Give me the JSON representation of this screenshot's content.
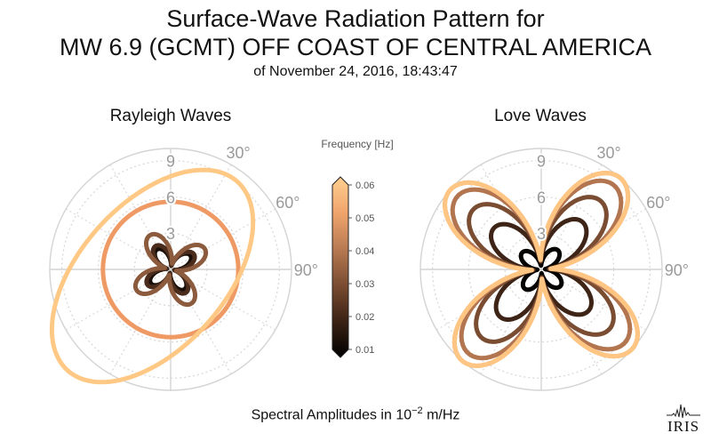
{
  "title": {
    "line1": "Surface-Wave Radiation Pattern for",
    "line2": "MW 6.9 (GCMT) OFF COAST OF CENTRAL AMERICA",
    "line3": "of November 24, 2016, 18:43:47"
  },
  "footer": {
    "prefix": "Spectral Amplitudes in 10",
    "exponent": "−2",
    "suffix": " m/Hz"
  },
  "logo": {
    "text": "IRIS"
  },
  "chart_data": [
    {
      "type": "polar-line",
      "name": "rayleigh",
      "title": "Rayleigh Waves",
      "rlim": [
        0,
        10
      ],
      "radial_ticks": [
        {
          "value": 3,
          "label": "3"
        },
        {
          "value": 6,
          "label": "6"
        },
        {
          "value": 9,
          "label": "9"
        }
      ],
      "angle_ticks": [
        {
          "deg": 30,
          "label": "30°"
        },
        {
          "deg": 60,
          "label": "60°"
        },
        {
          "deg": 90,
          "label": "90°"
        }
      ],
      "series": [
        {
          "frequency": 0.01,
          "color": "#1a0e08",
          "pattern": "four-lobe",
          "amplitude": 2.0,
          "orientation_deg": 10,
          "node_fraction": 0.15
        },
        {
          "frequency": 0.02,
          "color": "#4a2c1c",
          "pattern": "four-lobe",
          "amplitude": 2.3,
          "orientation_deg": 12,
          "node_fraction": 0.15
        },
        {
          "frequency": 0.03,
          "color": "#8c5a3c",
          "pattern": "four-lobe",
          "amplitude": 3.3,
          "orientation_deg": 14,
          "node_fraction": 0.15
        },
        {
          "frequency": 0.045,
          "color": "#ef9a64",
          "pattern": "circle",
          "amplitude": 5.6
        },
        {
          "frequency": 0.06,
          "color": "#ffc985",
          "pattern": "oval",
          "a": 10.5,
          "b": 6.0,
          "orientation_deg": 42,
          "offset_r": 1.6,
          "offset_deg": -110
        }
      ]
    },
    {
      "type": "polar-line",
      "name": "love",
      "title": "Love Waves",
      "rlim": [
        0,
        10
      ],
      "radial_ticks": [
        {
          "value": 3,
          "label": "3"
        },
        {
          "value": 6,
          "label": "6"
        },
        {
          "value": 9,
          "label": "9"
        }
      ],
      "angle_ticks": [
        {
          "deg": 30,
          "label": "30°"
        },
        {
          "deg": 60,
          "label": "60°"
        },
        {
          "deg": 90,
          "label": "90°"
        }
      ],
      "series": [
        {
          "frequency": 0.01,
          "color": "#050302",
          "pattern": "four-lobe",
          "amplitude": 2.1,
          "orientation_deg": -4,
          "node_fraction": 0.15
        },
        {
          "frequency": 0.02,
          "color": "#3d2416",
          "pattern": "four-lobe",
          "amplitude": 5.2,
          "orientation_deg": -4,
          "node_fraction": 0.12
        },
        {
          "frequency": 0.03,
          "color": "#7a4c31",
          "pattern": "four-lobe",
          "amplitude": 7.5,
          "orientation_deg": -4,
          "node_fraction": 0.1
        },
        {
          "frequency": 0.04,
          "color": "#b37550",
          "pattern": "four-lobe",
          "amplitude": 9.2,
          "orientation_deg": -4,
          "node_fraction": 0.08
        },
        {
          "frequency": 0.05,
          "color": "#e8a06c",
          "pattern": "four-lobe",
          "amplitude": 10.0,
          "orientation_deg": -4,
          "node_fraction": 0.08
        },
        {
          "frequency": 0.06,
          "color": "#ffc583",
          "pattern": "four-lobe",
          "amplitude": 10.0,
          "orientation_deg": -4,
          "node_fraction": 0.08
        }
      ]
    }
  ],
  "colorbar": {
    "label": "Frequency [Hz]",
    "min": 0.01,
    "max": 0.06,
    "ticks": [
      {
        "value": 0.01,
        "label": "0.01"
      },
      {
        "value": 0.02,
        "label": "0.02"
      },
      {
        "value": 0.03,
        "label": "0.03"
      },
      {
        "value": 0.04,
        "label": "0.04"
      },
      {
        "value": 0.05,
        "label": "0.05"
      },
      {
        "value": 0.06,
        "label": "0.06"
      }
    ],
    "stops": [
      "#000000",
      "#3b2214",
      "#7a4c31",
      "#b87a52",
      "#f0a46c",
      "#ffcf90"
    ]
  }
}
